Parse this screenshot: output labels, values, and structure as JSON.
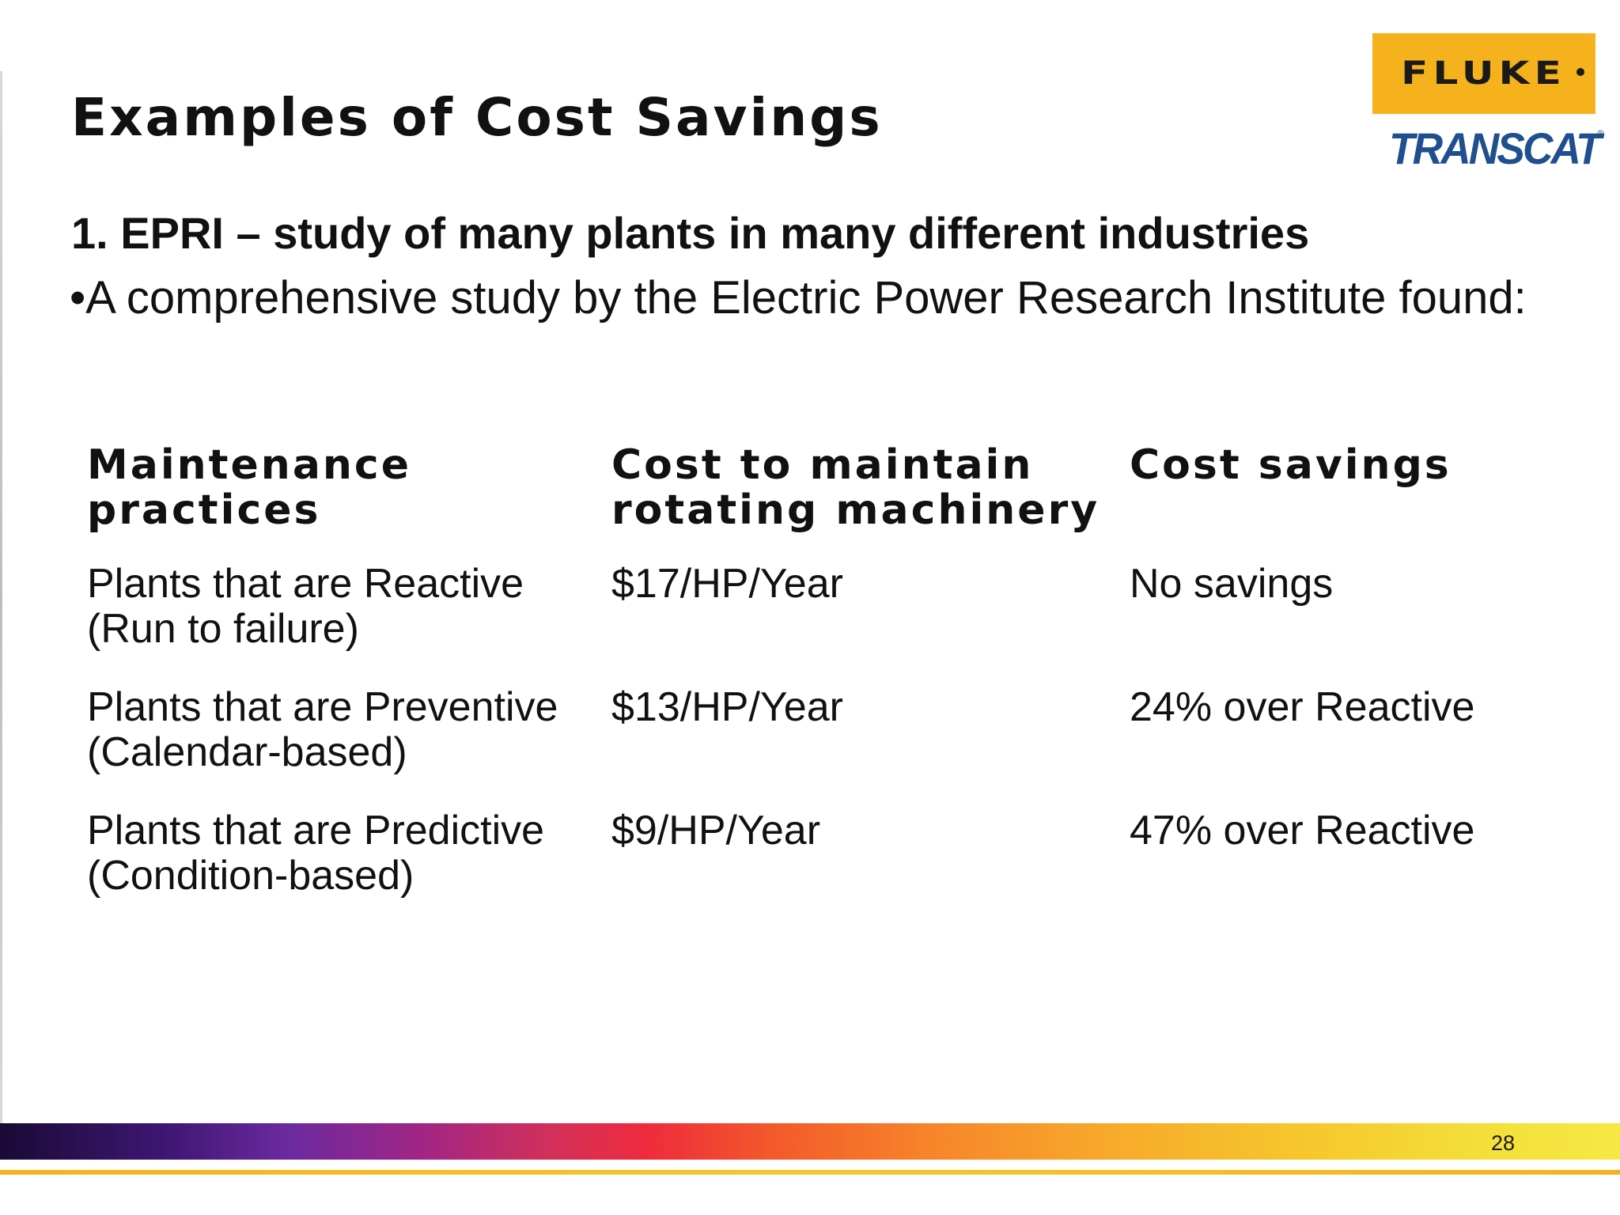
{
  "slide": {
    "title": "Examples of Cost Savings",
    "subheading": "1. EPRI – study of many plants in many different industries",
    "bullet": "•A comprehensive study by the Electric Power Research Institute found:",
    "page_number": "28"
  },
  "logos": {
    "fluke": "FLUKE",
    "transcat": "TRANSCAT"
  },
  "table": {
    "headers": [
      "Maintenance practices",
      "Cost to maintain rotating machinery",
      "Cost savings"
    ],
    "rows": [
      {
        "practice": "Plants that are Reactive (Run to failure)",
        "cost": "$17/HP/Year",
        "savings": "No savings"
      },
      {
        "practice": "Plants that are Preventive (Calendar-based)",
        "cost": "$13/HP/Year",
        "savings": "24% over Reactive"
      },
      {
        "practice": "Plants that are Predictive (Condition-based)",
        "cost": "$9/HP/Year",
        "savings": "47% over Reactive"
      }
    ]
  },
  "colors": {
    "fluke_yellow": "#f5b21c",
    "transcat_blue": "#1f4f8f",
    "text": "#111111"
  }
}
